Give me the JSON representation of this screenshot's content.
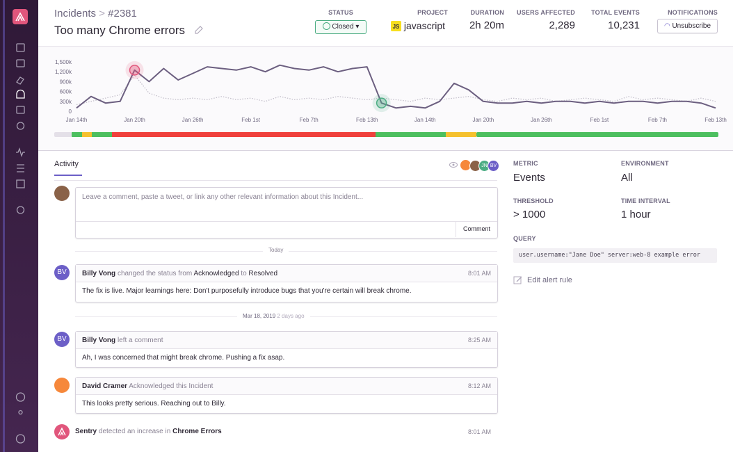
{
  "header": {
    "breadcrumb": "Incidents",
    "id": "#2381",
    "title": "Too many Chrome errors",
    "stats": [
      {
        "label": "STATUS",
        "value": "Closed"
      },
      {
        "label": "PROJECT",
        "value": "javascript",
        "badge": "JS"
      },
      {
        "label": "DURATION",
        "value": "2h 20m"
      },
      {
        "label": "USERS AFFECTED",
        "value": "2,289"
      },
      {
        "label": "TOTAL EVENTS",
        "value": "10,231"
      },
      {
        "label": "NOTIFICATIONS",
        "value": "Unsubscribe"
      }
    ]
  },
  "chart_data": {
    "type": "line",
    "categories": [
      "Jan 14th",
      null,
      null,
      null,
      "Jan 20th",
      null,
      null,
      null,
      "Jan 26th",
      null,
      null,
      null,
      "Feb 1st",
      null,
      null,
      null,
      "Feb 7th",
      null,
      null,
      null,
      "Feb 13th",
      null,
      null,
      null,
      "Jan 14th",
      null,
      null,
      null,
      "Jan 20th",
      null,
      null,
      null,
      "Jan 26th",
      null,
      null,
      null,
      "Feb 1st",
      null,
      null,
      null,
      "Feb 7th",
      null,
      null,
      null,
      "Feb 13th"
    ],
    "ylim": [
      0,
      1500000
    ],
    "yticks": [
      0,
      {
        "value": 300000,
        "label": "300k"
      },
      {
        "value": 600000,
        "label": "600k"
      },
      {
        "value": 900000,
        "label": "900k"
      },
      {
        "value": 1200000,
        "label": "1,200k"
      },
      {
        "value": 1500000,
        "label": "1,500k"
      }
    ],
    "series": [
      {
        "color": "#6c5f80",
        "line_style": "solid",
        "values": [
          100000,
          450000,
          250000,
          300000,
          1250000,
          900000,
          1300000,
          950000,
          1150000,
          1350000,
          1300000,
          1250000,
          1350000,
          1200000,
          1400000,
          1300000,
          1250000,
          1350000,
          1200000,
          1300000,
          1350000,
          250000,
          100000,
          150000,
          100000,
          300000,
          850000,
          650000,
          300000,
          250000,
          250000,
          300000,
          250000,
          300000,
          300000,
          250000,
          300000,
          250000,
          300000,
          300000,
          250000,
          300000,
          300000,
          250000,
          100000
        ]
      },
      {
        "color": "#c4c0cb",
        "line_style": "dotted",
        "values": [
          200000,
          300000,
          400000,
          500000,
          1100000,
          550000,
          400000,
          350000,
          400000,
          350000,
          450000,
          350000,
          400000,
          300000,
          450000,
          350000,
          400000,
          350000,
          450000,
          400000,
          350000,
          400000,
          350000,
          300000,
          400000,
          350000,
          400000,
          450000,
          350000,
          300000,
          400000,
          350000,
          400000,
          300000,
          350000,
          400000,
          350000,
          300000,
          450000,
          350000,
          400000,
          350000,
          300000,
          400000,
          300000
        ]
      }
    ],
    "markers": [
      {
        "index": 4,
        "color": "#e1567c"
      },
      {
        "index": 21,
        "color": "#4cad83"
      }
    ]
  },
  "activity": {
    "tab": "Activity",
    "participants": [
      "JN",
      "BV"
    ],
    "comment_placeholder": "Leave a comment, paste a tweet, or link any other relevant information about this Incident...",
    "comment_button": "Comment",
    "today": "Today",
    "items": [
      {
        "avatar": "BV",
        "author": "Billy Vong",
        "action": "changed the status from",
        "from": "Acknowledged",
        "to_word": "to",
        "to": "Resolved",
        "time": "8:01 AM",
        "body": "The fix is live. Major learnings here: Don't purposefully introduce bugs that you're certain will break chrome."
      },
      {
        "avatar": "BV",
        "author": "Billy Vong",
        "action": "left a comment",
        "time": "8:25 AM",
        "body": "Ah, I was concerned that might break chrome. Pushing a fix asap."
      },
      {
        "author": "David Cramer",
        "action": "Acknowledged this Incident",
        "time": "8:12 AM",
        "body": "This looks pretty serious. Reaching out to Billy."
      },
      {
        "author": "Sentry",
        "action": "detected an increase in",
        "target": "Chrome Errors",
        "time": "8:01 AM"
      }
    ],
    "date_divider": {
      "date": "Mar 18, 2019",
      "ago": "2 days ago"
    }
  },
  "details": {
    "metric_label": "METRIC",
    "metric": "Events",
    "environment_label": "ENVIRONMENT",
    "environment": "All",
    "threshold_label": "THRESHOLD",
    "threshold": "> 1000",
    "interval_label": "TIME INTERVAL",
    "interval": "1 hour",
    "query_label": "QUERY",
    "query": "user.username:\"Jane Doe\" server:web-8 example error",
    "edit": "Edit alert rule"
  }
}
